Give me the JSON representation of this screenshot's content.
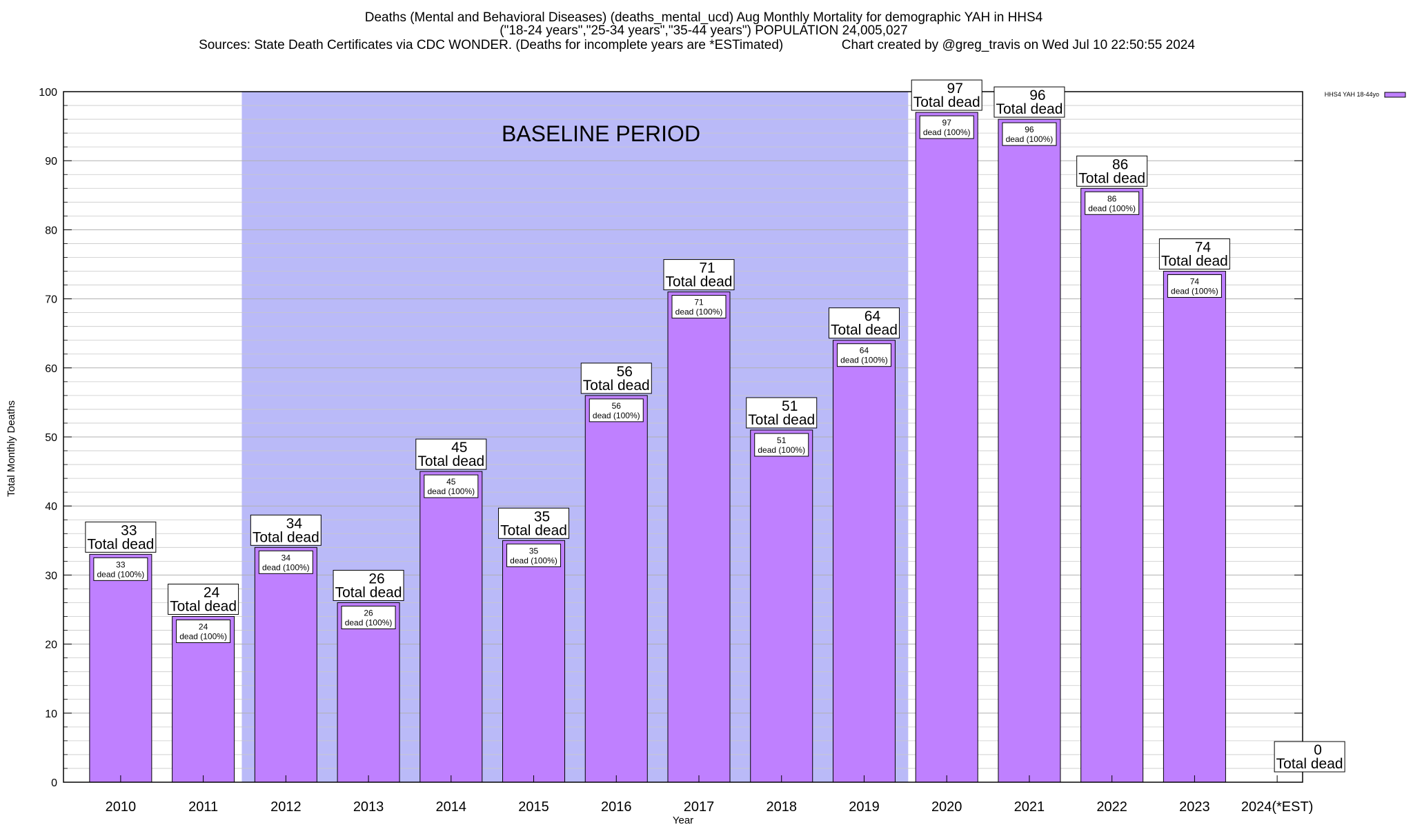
{
  "header": {
    "title_line1": "Deaths (Mental and Behavioral Diseases) (deaths_mental_ucd) Aug Monthly Mortality for demographic YAH in HHS4",
    "title_line2": "(\"18-24 years\",\"25-34 years\",\"35-44 years\") POPULATION 24,005,027",
    "title_line3": "Sources: State Death Certificates via CDC WONDER. (Deaths for incomplete years are *ESTimated)                Chart created by @greg_travis on Wed Jul 10 22:50:55 2024"
  },
  "colors": {
    "bar_fill": "#bf80ff",
    "baseline_band": "#babaf8",
    "gridline": "#c8c8c8",
    "frame": "#000000"
  },
  "chart_data": {
    "type": "bar",
    "xlabel": "Year",
    "ylabel": "Total Monthly Deaths",
    "ylim": [
      0,
      100
    ],
    "yticks": [
      "0",
      "10",
      "20",
      "30",
      "40",
      "50",
      "60",
      "70",
      "80",
      "90",
      "100"
    ],
    "grid": true,
    "legend": {
      "position": "top-right",
      "entries": [
        "HHS4 YAH 18-44yo"
      ]
    },
    "categories": [
      "2010",
      "2011",
      "2012",
      "2013",
      "2014",
      "2015",
      "2016",
      "2017",
      "2018",
      "2019",
      "2020",
      "2021",
      "2022",
      "2023",
      "2024(*EST)"
    ],
    "series": [
      {
        "name": "HHS4 YAH 18-44yo",
        "values": [
          33,
          24,
          34,
          26,
          45,
          35,
          56,
          71,
          51,
          64,
          97,
          96,
          86,
          74,
          0
        ]
      }
    ],
    "total_label_suffix": "Total dead",
    "inner_label_suffix": "dead (100%)",
    "annotations": [
      {
        "text": "BASELINE PERIOD",
        "span_categories": [
          "2012",
          "2019"
        ]
      }
    ]
  }
}
